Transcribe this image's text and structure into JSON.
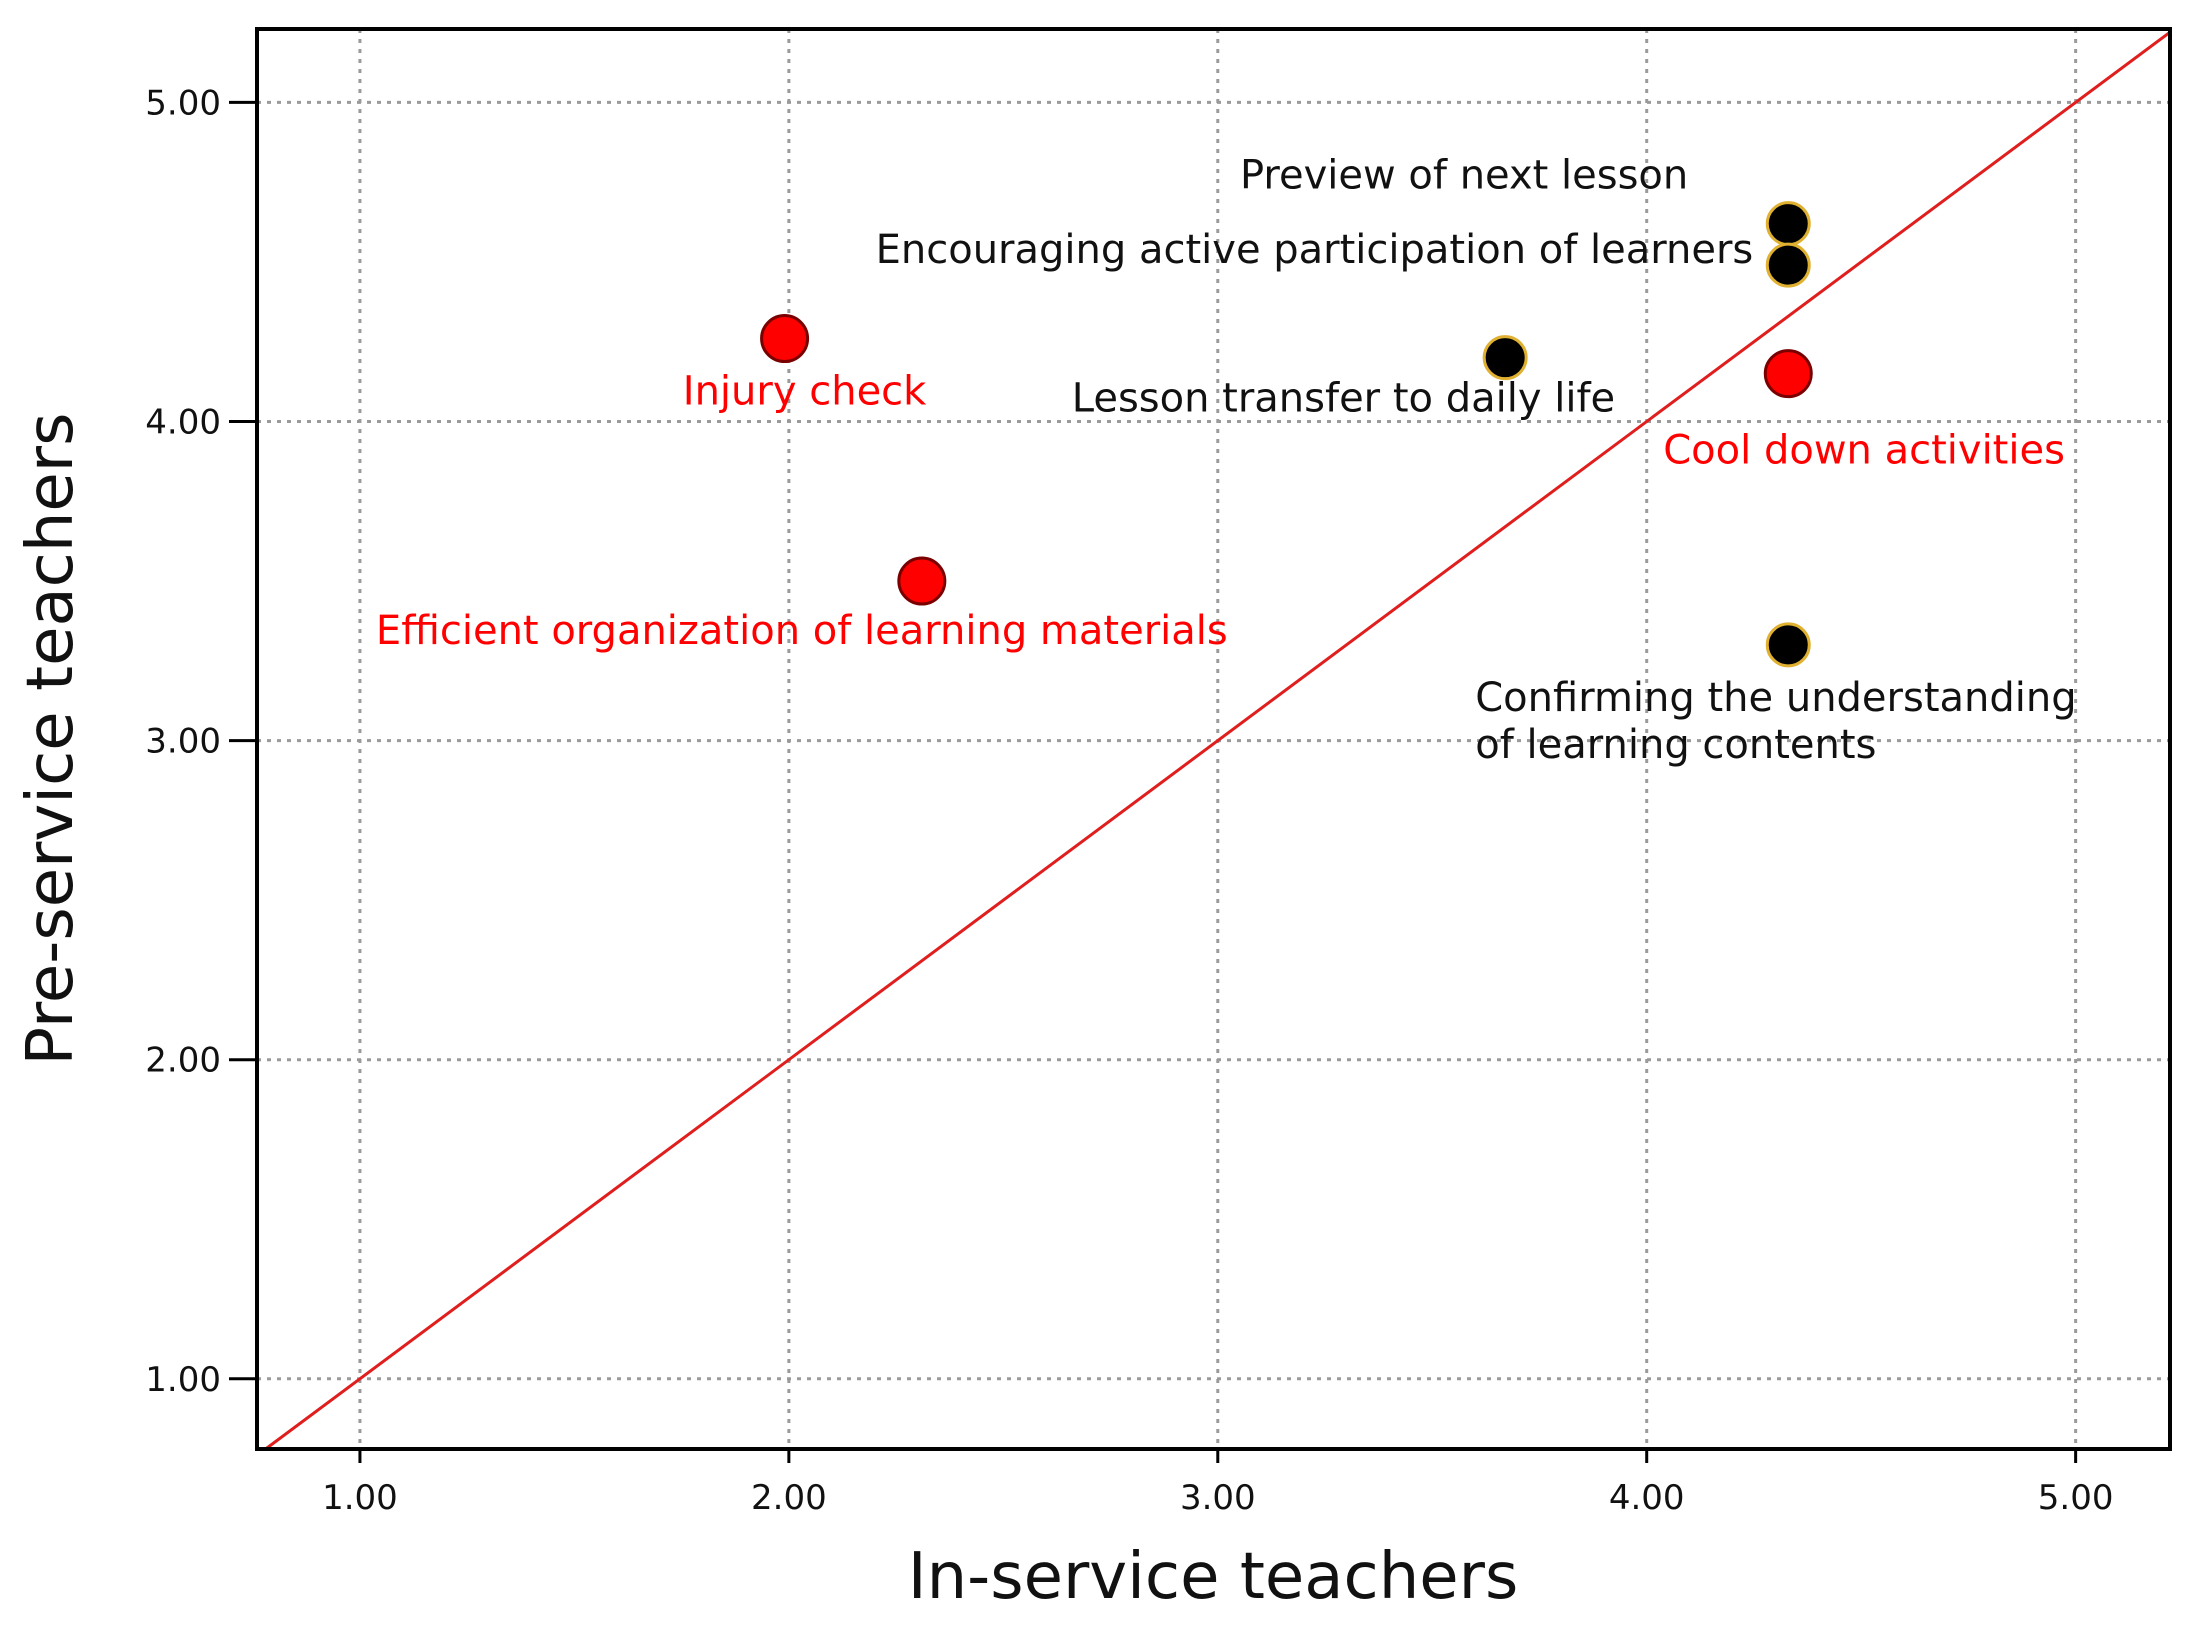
{
  "chart_data": {
    "type": "scatter",
    "xlabel": "In-service teachers",
    "ylabel": "Pre-service teachers",
    "xlim": [
      0.76,
      5.22
    ],
    "ylim": [
      0.78,
      5.23
    ],
    "x_ticks": [
      1.0,
      2.0,
      3.0,
      4.0,
      5.0
    ],
    "y_ticks": [
      1.0,
      2.0,
      3.0,
      4.0,
      5.0
    ],
    "x_tick_labels": [
      "1.00",
      "2.00",
      "3.00",
      "4.00",
      "5.00"
    ],
    "y_tick_labels": [
      "1.00",
      "2.00",
      "3.00",
      "4.00",
      "5.00"
    ],
    "grid": true,
    "reference_line": {
      "type": "y=x",
      "color": "#e01e1e"
    },
    "colors": {
      "red": "#ff0000",
      "black": "#000000",
      "black_outline": "#e0b030",
      "red_outline": "#7a0000",
      "grid": "#9a9a9a"
    },
    "points": [
      {
        "label": "Preview of next lesson",
        "x": 4.33,
        "y": 4.62,
        "color": "black"
      },
      {
        "label": "Encouraging active participation of learners",
        "x": 4.33,
        "y": 4.49,
        "color": "black"
      },
      {
        "label": "Lesson transfer to daily life",
        "x": 3.67,
        "y": 4.2,
        "color": "black"
      },
      {
        "label": "Cool down activities",
        "x": 4.33,
        "y": 4.15,
        "color": "red"
      },
      {
        "label": "Injury check",
        "x": 1.99,
        "y": 4.26,
        "color": "red"
      },
      {
        "label": "Efficient organization of learning materials",
        "x": 2.31,
        "y": 3.5,
        "color": "red"
      },
      {
        "label": "Confirming the understanding of learning contents",
        "label_lines": [
          "Confirming the understanding",
          "of learning contents"
        ],
        "x": 4.33,
        "y": 3.3,
        "color": "black"
      }
    ]
  }
}
